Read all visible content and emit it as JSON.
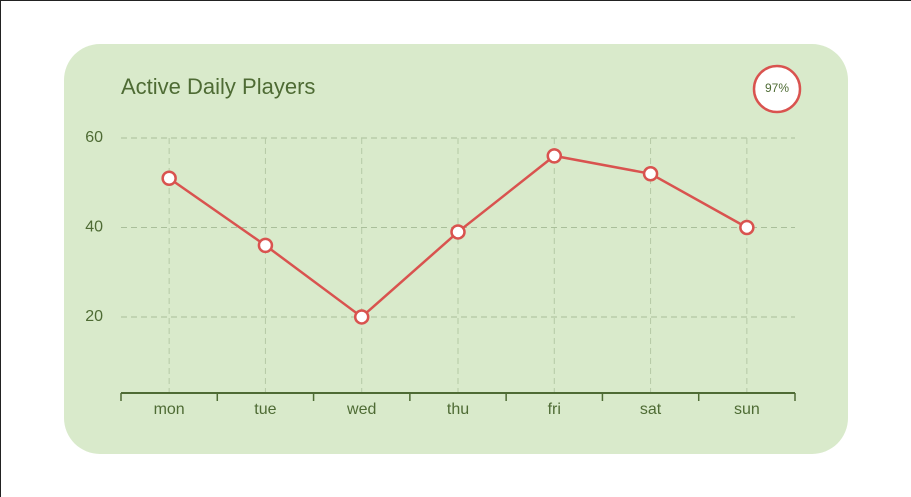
{
  "chart_data": {
    "type": "line",
    "title": "Active Daily Players",
    "badge": "97%",
    "categories": [
      "mon",
      "tue",
      "wed",
      "thu",
      "fri",
      "sat",
      "sun"
    ],
    "series": [
      {
        "name": "Active Daily Players",
        "color": "#d9534f",
        "values": [
          51,
          36,
          20,
          39,
          56,
          52,
          40
        ]
      }
    ],
    "ylim": [
      3,
      60
    ],
    "yticks": [
      20,
      40,
      60
    ],
    "grid": true
  }
}
